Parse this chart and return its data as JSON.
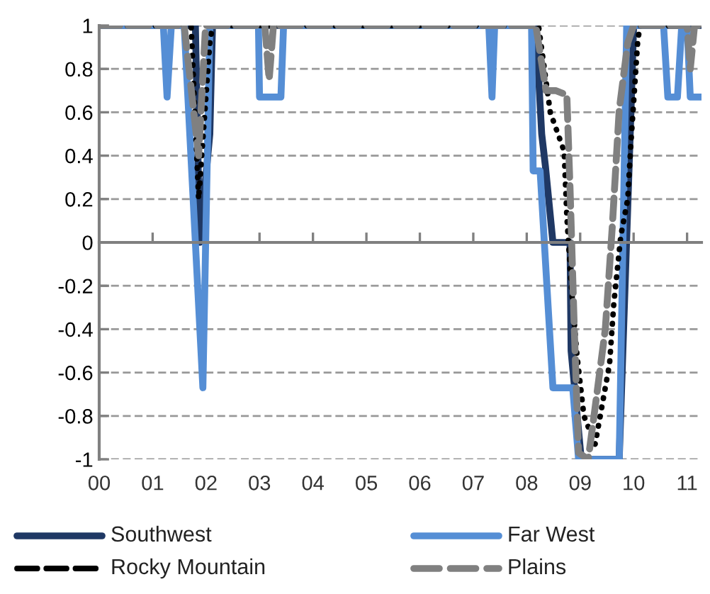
{
  "chart_data": {
    "type": "line",
    "xlim": [
      2000,
      2011.27
    ],
    "ylim": [
      -1,
      1
    ],
    "xticks": [
      {
        "value": 2000,
        "label": "00"
      },
      {
        "value": 2001,
        "label": "01"
      },
      {
        "value": 2002,
        "label": "02"
      },
      {
        "value": 2003,
        "label": "03"
      },
      {
        "value": 2004,
        "label": "04"
      },
      {
        "value": 2005,
        "label": "05"
      },
      {
        "value": 2006,
        "label": "06"
      },
      {
        "value": 2007,
        "label": "07"
      },
      {
        "value": 2008,
        "label": "08"
      },
      {
        "value": 2009,
        "label": "09"
      },
      {
        "value": 2010,
        "label": "10"
      },
      {
        "value": 2011,
        "label": "11"
      }
    ],
    "yticks": [
      -1,
      -0.8,
      -0.6,
      -0.4,
      -0.2,
      0,
      0.2,
      0.4,
      0.6,
      0.8,
      1
    ],
    "grid": "y",
    "legend": "bottom",
    "series": [
      {
        "name": "Southwest",
        "color": "#1f3864",
        "line_style": "solid",
        "x": [
          2000,
          2001.8,
          2001.88,
          2002.07,
          2002.12,
          2008.17,
          2008.28,
          2008.35,
          2008.49,
          2008.81,
          2008.83,
          2009.02,
          2009.73,
          2009.95,
          2010.0,
          2011.27
        ],
        "values": [
          1,
          1,
          0,
          0.5,
          1,
          1,
          0.5,
          0.35,
          0,
          0,
          -0.5,
          -1,
          -1,
          0.6,
          1,
          1
        ]
      },
      {
        "name": "Far West",
        "color": "#558ed5",
        "line_style": "solid",
        "x": [
          2000,
          2001.2,
          2001.27,
          2001.35,
          2001.59,
          2001.94,
          2002.07,
          2002.98,
          2003.0,
          2003.4,
          2003.45,
          2007.29,
          2007.35,
          2007.4,
          2008.09,
          2008.12,
          2008.25,
          2008.49,
          2008.86,
          2008.97,
          2009.73,
          2009.87,
          2010.56,
          2010.64,
          2010.82,
          2010.9,
          2011.0,
          2011.06,
          2011.27
        ],
        "values": [
          1,
          1,
          0.67,
          1,
          1,
          -0.67,
          1,
          1,
          0.67,
          0.67,
          1,
          1,
          0.67,
          1,
          1,
          0.33,
          0.33,
          -0.67,
          -0.67,
          -1,
          -1,
          1,
          1,
          0.67,
          0.67,
          1,
          1,
          0.67,
          0.67
        ]
      },
      {
        "name": "Rocky Mountain",
        "color": "#000000",
        "line_style": "dotted",
        "x": [
          2000,
          2001.72,
          2001.86,
          2002.07,
          2002.12,
          2008.22,
          2008.44,
          2008.7,
          2008.75,
          2008.83,
          2008.94,
          2009.07,
          2009.28,
          2009.55,
          2009.63,
          2009.76,
          2009.89,
          2009.95,
          2010.08,
          2010.13,
          2011.27
        ],
        "values": [
          1,
          1,
          0.2,
          0.92,
          1,
          1,
          0.6,
          0.42,
          0.12,
          -0.19,
          -0.52,
          -0.8,
          -0.93,
          -0.56,
          -0.28,
          0.03,
          0.2,
          0.46,
          0.94,
          1,
          1
        ]
      },
      {
        "name": "Plains",
        "color": "#808080",
        "line_style": "dashed",
        "x": [
          2000,
          2001.59,
          2001.86,
          2001.99,
          2003.1,
          2003.18,
          2003.26,
          2008.17,
          2008.36,
          2008.54,
          2008.75,
          2008.81,
          2008.89,
          2008.97,
          2009.15,
          2009.28,
          2009.47,
          2009.6,
          2009.73,
          2009.89,
          2010.0,
          2011.0,
          2011.06,
          2011.14,
          2011.27
        ],
        "values": [
          1,
          1,
          0.4,
          1,
          1,
          0.75,
          1,
          1,
          0.7,
          0.7,
          0.68,
          0.25,
          -0.4,
          -0.97,
          -1,
          -0.76,
          -0.4,
          0.07,
          0.61,
          0.92,
          1,
          1,
          0.8,
          1,
          1
        ]
      }
    ]
  }
}
